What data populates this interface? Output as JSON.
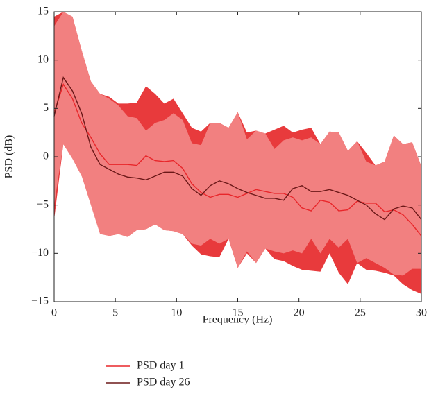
{
  "chart_data": {
    "type": "line",
    "x_label": "Frequency (Hz)",
    "y_label": "PSD (dB)",
    "xlim": [
      0,
      30
    ],
    "ylim": [
      -15,
      15
    ],
    "xticks": [
      0,
      5,
      10,
      15,
      20,
      25,
      30
    ],
    "yticks": [
      {
        "value": -15,
        "label": "−15"
      },
      {
        "value": -10,
        "label": "−10"
      },
      {
        "value": -5,
        "label": "−5"
      },
      0,
      5,
      10,
      15
    ],
    "x": [
      0,
      0.75,
      1.5,
      2.25,
      3,
      3.75,
      4.5,
      5.25,
      6,
      6.75,
      7.5,
      8.25,
      9,
      9.75,
      10.5,
      11.25,
      12,
      12.75,
      13.5,
      14.25,
      15,
      15.75,
      16.5,
      17.25,
      18,
      18.75,
      19.5,
      20.25,
      21,
      21.75,
      22.5,
      23.25,
      24,
      24.75,
      25.5,
      26.25,
      27,
      27.75,
      28.5,
      29.25,
      30
    ],
    "bands": [
      {
        "color": "#e83a3c",
        "upper": [
          14.5,
          15,
          14.5,
          11,
          7.8,
          6.5,
          6.2,
          5.5,
          5.5,
          5.6,
          7.3,
          6.5,
          5.5,
          6,
          4.5,
          3,
          2.6,
          3.5,
          3.5,
          3,
          4.6,
          2.5,
          2.7,
          2.4,
          2.8,
          3.2,
          2.5,
          2.8,
          3,
          1.3,
          2.6,
          2.5,
          0.6,
          1.6,
          0.4,
          -0.9,
          -0.5,
          2.2,
          1.3,
          1.5,
          -1
        ],
        "lower": [
          -6.5,
          1.3,
          -0.2,
          -2,
          -3.2,
          -3.3,
          -8.2,
          -8,
          -8.3,
          -7.6,
          -7.5,
          -7,
          -7.6,
          -7.7,
          -8,
          -9.2,
          -10.1,
          -10.3,
          -10.4,
          -8.5,
          -11.5,
          -10,
          -11,
          -9.5,
          -10.6,
          -10.8,
          -11.3,
          -11.7,
          -11.8,
          -11.9,
          -10,
          -12,
          -13.2,
          -11,
          -11.7,
          -11.8,
          -12,
          -12.3,
          -13.2,
          -13.8,
          -14.2
        ]
      },
      {
        "color": "#f28080",
        "upper": [
          13.5,
          15,
          14.5,
          11,
          7.8,
          6.5,
          6,
          5.3,
          4.2,
          4,
          2.7,
          3.5,
          3.8,
          4.5,
          3.8,
          1.4,
          1.2,
          3.5,
          3.5,
          3,
          4.6,
          1.8,
          2.7,
          2.4,
          0.8,
          1.7,
          2,
          1.7,
          2,
          1.3,
          2.6,
          2.5,
          0.6,
          1.6,
          -0.5,
          -0.9,
          -0.5,
          2.2,
          1.3,
          1.5,
          -1
        ],
        "lower": [
          -5,
          1.3,
          -0.2,
          -2,
          -5,
          -8,
          -8.2,
          -8,
          -8.3,
          -7.6,
          -7.5,
          -7,
          -7.6,
          -7.7,
          -8,
          -9,
          -9.2,
          -8.5,
          -9,
          -8.5,
          -11.5,
          -9.8,
          -11,
          -9.5,
          -9.8,
          -10,
          -9.7,
          -10,
          -8.5,
          -10,
          -8.5,
          -9.4,
          -8.5,
          -11,
          -10.5,
          -11,
          -11.5,
          -12.2,
          -12.3,
          -11.6,
          -11.6
        ]
      }
    ],
    "series": [
      {
        "name": "PSD day 1",
        "color": "#e8262a",
        "values": [
          4.5,
          7.5,
          6,
          3.5,
          2,
          0.3,
          -0.8,
          -0.8,
          -0.8,
          -0.9,
          0.1,
          -0.4,
          -0.5,
          -0.4,
          -1.2,
          -2.8,
          -3.7,
          -4.2,
          -3.9,
          -3.9,
          -4.2,
          -3.8,
          -3.4,
          -3.6,
          -3.8,
          -3.8,
          -4.2,
          -5.3,
          -5.6,
          -4.5,
          -4.7,
          -5.6,
          -5.5,
          -4.6,
          -4.8,
          -4.8,
          -5.7,
          -5.5,
          -6,
          -7,
          -8.2
        ]
      },
      {
        "name": "PSD day 26",
        "color": "#6b1818",
        "values": [
          4.2,
          8.2,
          6.8,
          4.5,
          1,
          -0.8,
          -1.3,
          -1.8,
          -2.1,
          -2.2,
          -2.4,
          -2,
          -1.6,
          -1.6,
          -2,
          -3.3,
          -4,
          -3,
          -2.5,
          -2.8,
          -3.3,
          -3.7,
          -4,
          -4.3,
          -4.3,
          -4.5,
          -3.3,
          -3,
          -3.6,
          -3.6,
          -3.4,
          -3.7,
          -4,
          -4.5,
          -5,
          -5.9,
          -6.5,
          -5.4,
          -5.1,
          -5.3,
          -6.5
        ]
      }
    ]
  }
}
